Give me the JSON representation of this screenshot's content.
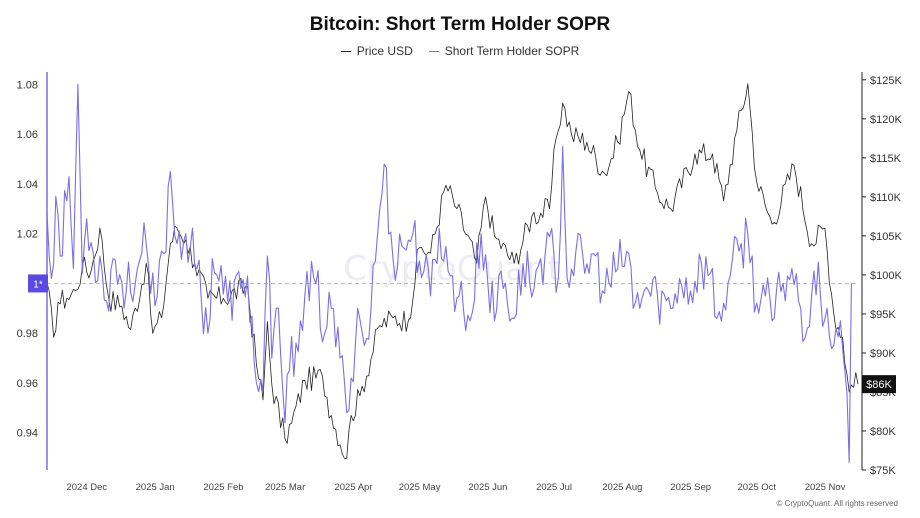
{
  "title": "Bitcoin: Short Term Holder SOPR",
  "footer": "© CryptoQuant. All rights reserved",
  "watermark": "CryptoQuant",
  "chart_data": {
    "type": "line",
    "title": "Bitcoin: Short Term Holder SOPR",
    "legend_position": "top-center",
    "grid": false,
    "series": [
      {
        "name": "Price USD",
        "axis": "right",
        "color": "#222222",
        "keypoints": [
          [
            "2024-11-22",
            99000
          ],
          [
            "2024-11-25",
            92000
          ],
          [
            "2024-11-27",
            96500
          ],
          [
            "2024-12-01",
            97000
          ],
          [
            "2024-12-05",
            98000
          ],
          [
            "2024-12-08",
            101000
          ],
          [
            "2024-12-12",
            100500
          ],
          [
            "2024-12-16",
            106000
          ],
          [
            "2024-12-20",
            97000
          ],
          [
            "2024-12-26",
            96000
          ],
          [
            "2024-12-30",
            93000
          ],
          [
            "2025-01-06",
            101500
          ],
          [
            "2025-01-09",
            92500
          ],
          [
            "2025-01-13",
            94500
          ],
          [
            "2025-01-17",
            104000
          ],
          [
            "2025-01-20",
            106000
          ],
          [
            "2025-01-24",
            104500
          ],
          [
            "2025-01-28",
            101500
          ],
          [
            "2025-02-03",
            97000
          ],
          [
            "2025-02-10",
            97000
          ],
          [
            "2025-02-21",
            98500
          ],
          [
            "2025-02-25",
            88500
          ],
          [
            "2025-02-28",
            84000
          ],
          [
            "2025-03-02",
            94000
          ],
          [
            "2025-03-04",
            86000
          ],
          [
            "2025-03-10",
            79000
          ],
          [
            "2025-03-13",
            81000
          ],
          [
            "2025-03-19",
            86500
          ],
          [
            "2025-03-27",
            87000
          ],
          [
            "2025-03-31",
            82000
          ],
          [
            "2025-04-07",
            76500
          ],
          [
            "2025-04-09",
            82000
          ],
          [
            "2025-04-13",
            84500
          ],
          [
            "2025-04-22",
            93500
          ],
          [
            "2025-04-28",
            94500
          ],
          [
            "2025-05-05",
            94200
          ],
          [
            "2025-05-10",
            103500
          ],
          [
            "2025-05-15",
            102800
          ],
          [
            "2025-05-22",
            111500
          ],
          [
            "2025-05-27",
            108500
          ],
          [
            "2025-06-05",
            101500
          ],
          [
            "2025-06-09",
            110000
          ],
          [
            "2025-06-13",
            105000
          ],
          [
            "2025-06-22",
            101500
          ],
          [
            "2025-06-30",
            107500
          ],
          [
            "2025-07-08",
            108500
          ],
          [
            "2025-07-11",
            117500
          ],
          [
            "2025-07-14",
            122000
          ],
          [
            "2025-07-18",
            118000
          ],
          [
            "2025-07-25",
            117000
          ],
          [
            "2025-08-02",
            113000
          ],
          [
            "2025-08-08",
            117000
          ],
          [
            "2025-08-13",
            123500
          ],
          [
            "2025-08-18",
            116000
          ],
          [
            "2025-08-26",
            110500
          ],
          [
            "2025-09-01",
            108500
          ],
          [
            "2025-09-12",
            115500
          ],
          [
            "2025-09-20",
            115500
          ],
          [
            "2025-09-25",
            109500
          ],
          [
            "2025-10-01",
            118500
          ],
          [
            "2025-10-06",
            124500
          ],
          [
            "2025-10-10",
            112000
          ],
          [
            "2025-10-17",
            106500
          ],
          [
            "2025-10-27",
            114000
          ],
          [
            "2025-11-04",
            104000
          ],
          [
            "2025-11-10",
            106000
          ],
          [
            "2025-11-14",
            95000
          ],
          [
            "2025-11-18",
            92000
          ],
          [
            "2025-11-21",
            85000
          ],
          [
            "2025-11-24",
            87500
          ],
          [
            "2025-11-25",
            86000
          ]
        ]
      },
      {
        "name": "Short Term Holder SOPR",
        "axis": "left",
        "color": "#7B6FE6",
        "keypoints": [
          [
            "2024-11-22",
            1.028
          ],
          [
            "2024-11-24",
            1.002
          ],
          [
            "2024-11-26",
            1.035
          ],
          [
            "2024-11-28",
            1.011
          ],
          [
            "2024-12-02",
            1.043
          ],
          [
            "2024-12-04",
            1.006
          ],
          [
            "2024-12-06",
            1.08
          ],
          [
            "2024-12-08",
            1.004
          ],
          [
            "2024-12-10",
            1.026
          ],
          [
            "2024-12-13",
            1.012
          ],
          [
            "2024-12-17",
            1.005
          ],
          [
            "2024-12-19",
            0.993
          ],
          [
            "2024-12-22",
            1.01
          ],
          [
            "2024-12-28",
            0.997
          ],
          [
            "2025-01-02",
            1.006
          ],
          [
            "2025-01-06",
            1.016
          ],
          [
            "2025-01-08",
            0.996
          ],
          [
            "2025-01-10",
            0.991
          ],
          [
            "2025-01-14",
            1.012
          ],
          [
            "2025-01-17",
            1.045
          ],
          [
            "2025-01-20",
            1.016
          ],
          [
            "2025-01-24",
            1.02
          ],
          [
            "2025-01-29",
            1.006
          ],
          [
            "2025-02-03",
            0.98
          ],
          [
            "2025-02-05",
            1.01
          ],
          [
            "2025-02-12",
            0.993
          ],
          [
            "2025-02-18",
            0.998
          ],
          [
            "2025-02-21",
            1.003
          ],
          [
            "2025-02-25",
            0.96
          ],
          [
            "2025-02-28",
            0.957
          ],
          [
            "2025-03-02",
            1.011
          ],
          [
            "2025-03-04",
            0.97
          ],
          [
            "2025-03-07",
            0.99
          ],
          [
            "2025-03-10",
            0.944
          ],
          [
            "2025-03-12",
            0.965
          ],
          [
            "2025-03-17",
            0.985
          ],
          [
            "2025-03-19",
            0.995
          ],
          [
            "2025-03-24",
            1.0
          ],
          [
            "2025-03-28",
            0.98
          ],
          [
            "2025-03-31",
            0.99
          ],
          [
            "2025-04-04",
            0.97
          ],
          [
            "2025-04-07",
            0.948
          ],
          [
            "2025-04-09",
            0.962
          ],
          [
            "2025-04-12",
            0.99
          ],
          [
            "2025-04-15",
            0.975
          ],
          [
            "2025-04-18",
            0.99
          ],
          [
            "2025-04-21",
            1.02
          ],
          [
            "2025-04-24",
            1.048
          ],
          [
            "2025-04-28",
            1.01
          ],
          [
            "2025-05-02",
            1.015
          ],
          [
            "2025-05-07",
            1.02
          ],
          [
            "2025-05-12",
            1.005
          ],
          [
            "2025-05-15",
            0.995
          ],
          [
            "2025-05-19",
            1.022
          ],
          [
            "2025-05-23",
            1.005
          ],
          [
            "2025-05-28",
            0.995
          ],
          [
            "2025-06-02",
            0.985
          ],
          [
            "2025-06-07",
            1.02
          ],
          [
            "2025-06-13",
            0.985
          ],
          [
            "2025-06-16",
            1.005
          ],
          [
            "2025-06-22",
            0.986
          ],
          [
            "2025-06-26",
            1.008
          ],
          [
            "2025-07-01",
            0.998
          ],
          [
            "2025-07-04",
            1.01
          ],
          [
            "2025-07-10",
            1.012
          ],
          [
            "2025-07-12",
            1.002
          ],
          [
            "2025-07-14",
            1.055
          ],
          [
            "2025-07-16",
            1.002
          ],
          [
            "2025-07-20",
            1.013
          ],
          [
            "2025-07-24",
            1.004
          ],
          [
            "2025-07-28",
            1.012
          ],
          [
            "2025-08-02",
            0.996
          ],
          [
            "2025-08-08",
            1.006
          ],
          [
            "2025-08-13",
            1.012
          ],
          [
            "2025-08-15",
            0.99
          ],
          [
            "2025-08-20",
            0.997
          ],
          [
            "2025-08-26",
            0.995
          ],
          [
            "2025-09-01",
            0.99
          ],
          [
            "2025-09-05",
            1.002
          ],
          [
            "2025-09-10",
            0.997
          ],
          [
            "2025-09-15",
            1.008
          ],
          [
            "2025-09-19",
            1.004
          ],
          [
            "2025-09-22",
            0.986
          ],
          [
            "2025-09-25",
            0.992
          ],
          [
            "2025-09-28",
            1.003
          ],
          [
            "2025-10-02",
            1.013
          ],
          [
            "2025-10-06",
            1.02
          ],
          [
            "2025-10-10",
            0.992
          ],
          [
            "2025-10-14",
            0.995
          ],
          [
            "2025-10-17",
            0.985
          ],
          [
            "2025-10-22",
            1.0
          ],
          [
            "2025-10-26",
            1.006
          ],
          [
            "2025-10-30",
            0.99
          ],
          [
            "2025-11-02",
            0.982
          ],
          [
            "2025-11-05",
            1.005
          ],
          [
            "2025-11-08",
            0.995
          ],
          [
            "2025-11-11",
            0.99
          ],
          [
            "2025-11-14",
            0.975
          ],
          [
            "2025-11-17",
            0.985
          ],
          [
            "2025-11-19",
            0.965
          ],
          [
            "2025-11-21",
            0.928
          ],
          [
            "2025-11-22",
            1.0
          ]
        ]
      }
    ],
    "x_axis": {
      "start": "2024-11-22",
      "end": "2025-11-25",
      "tick_labels": [
        "2024 Dec",
        "2025 Jan",
        "2025 Feb",
        "2025 Mar",
        "2025 Apr",
        "2025 May",
        "2025 Jun",
        "2025 Jul",
        "2025 Aug",
        "2025 Sep",
        "2025 Oct",
        "2025 Nov"
      ],
      "tick_dates": [
        "2024-12-01",
        "2025-01-01",
        "2025-02-01",
        "2025-03-01",
        "2025-04-01",
        "2025-05-01",
        "2025-06-01",
        "2025-07-01",
        "2025-08-01",
        "2025-09-01",
        "2025-10-01",
        "2025-11-01"
      ]
    },
    "y_left": {
      "range": [
        0.925,
        1.085
      ],
      "ticks": [
        0.94,
        0.96,
        0.98,
        1.0,
        1.02,
        1.04,
        1.06,
        1.08
      ],
      "tick_labels": [
        "0.94",
        "0.96",
        "0.98",
        "",
        "1.02",
        "1.04",
        "1.06",
        "1.08"
      ],
      "reference_value": 1.0,
      "reference_label": "1*"
    },
    "y_right": {
      "range": [
        75000,
        126000
      ],
      "ticks": [
        75000,
        80000,
        85000,
        90000,
        95000,
        100000,
        105000,
        110000,
        115000,
        120000,
        125000
      ],
      "tick_labels": [
        "$75K",
        "$80K",
        "$85K",
        "$90K",
        "$95K",
        "$100K",
        "$105K",
        "$110K",
        "$115K",
        "$120K",
        "$125K"
      ],
      "current_label": "$86K",
      "current_value": 86000
    }
  }
}
